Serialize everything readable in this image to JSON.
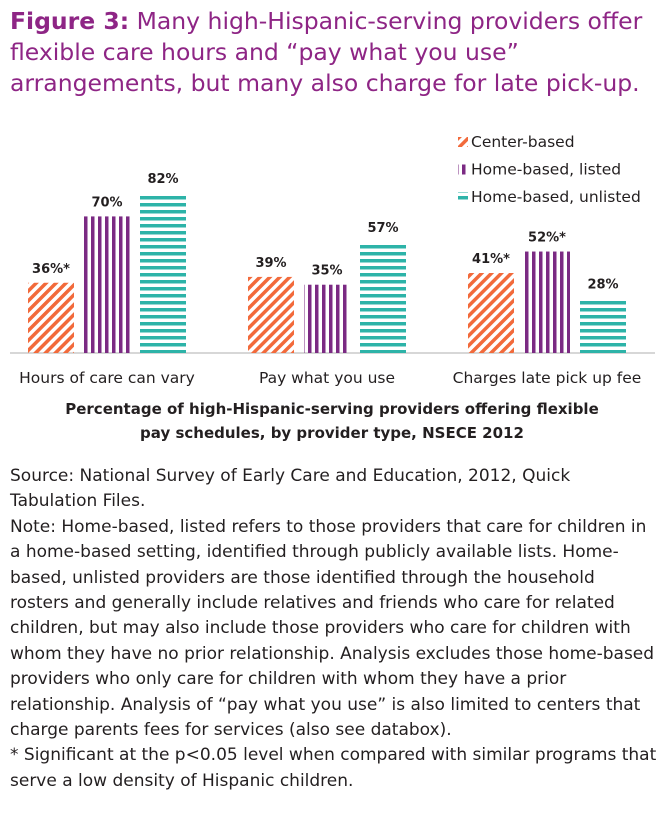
{
  "chart_data": {
    "type": "bar",
    "title_label": "Figure 3:",
    "title": "Many high-Hispanic-serving providers offer flexible care hours and “pay what you use” arrangements, but many also charge for late pick-up.",
    "caption": "Percentage of high-Hispanic-serving providers offering flexible pay schedules, by provider type, NSECE 2012",
    "categories": [
      "Hours of care can vary",
      "Pay what you use",
      "Charges late pick up fee"
    ],
    "series": [
      {
        "name": "Center-based",
        "color": "#f26a3b",
        "pattern": "diagonal",
        "values": [
          36,
          39,
          41
        ],
        "value_labels": [
          "36%*",
          "39%",
          "41%*"
        ]
      },
      {
        "name": "Home-based, listed",
        "color": "#7b2a83",
        "pattern": "vertical",
        "values": [
          70,
          35,
          52
        ],
        "value_labels": [
          "70%",
          "35%",
          "52%*"
        ]
      },
      {
        "name": "Home-based, unlisted",
        "color": "#2db3a8",
        "pattern": "horizontal",
        "values": [
          82,
          57,
          28
        ],
        "value_labels": [
          "82%",
          "57%",
          "28%"
        ]
      }
    ],
    "legend": "top-right"
  },
  "notes": {
    "source": "Source: National Survey of Early Care and Education, 2012, Quick Tabulation Files.",
    "note": "Note: Home-based, listed refers to those providers that care for children in a home-based setting, identified through publicly available lists. Home-based, unlisted providers are those identified through the household rosters and generally include relatives and friends who care for related children, but may also include those providers who care for children with whom they have no prior relationship. Analysis excludes those home-based providers who only care for children with whom they have a prior relationship. Analysis of “pay what you use” is also limited to centers that charge parents fees for services (also see databox).",
    "footnote": "* Significant at the p<0.05 level when compared with similar programs that serve a low density of Hispanic children."
  }
}
